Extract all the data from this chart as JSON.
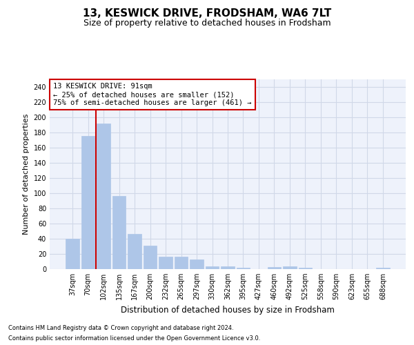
{
  "title": "13, KESWICK DRIVE, FRODSHAM, WA6 7LT",
  "subtitle": "Size of property relative to detached houses in Frodsham",
  "xlabel": "Distribution of detached houses by size in Frodsham",
  "ylabel": "Number of detached properties",
  "categories": [
    "37sqm",
    "70sqm",
    "102sqm",
    "135sqm",
    "167sqm",
    "200sqm",
    "232sqm",
    "265sqm",
    "297sqm",
    "330sqm",
    "362sqm",
    "395sqm",
    "427sqm",
    "460sqm",
    "492sqm",
    "525sqm",
    "558sqm",
    "590sqm",
    "623sqm",
    "655sqm",
    "688sqm"
  ],
  "values": [
    40,
    175,
    192,
    96,
    46,
    31,
    16,
    16,
    13,
    4,
    4,
    2,
    0,
    3,
    4,
    2,
    0,
    0,
    0,
    0,
    2
  ],
  "bar_color": "#aec6e8",
  "bar_edge_color": "#aec6e8",
  "grid_color": "#d0d8e8",
  "background_color": "#eef2fb",
  "vline_color": "#cc0000",
  "annotation_text": "13 KESWICK DRIVE: 91sqm\n← 25% of detached houses are smaller (152)\n75% of semi-detached houses are larger (461) →",
  "annotation_box_color": "#ffffff",
  "annotation_box_edge": "#cc0000",
  "ylim": [
    0,
    250
  ],
  "yticks": [
    0,
    20,
    40,
    60,
    80,
    100,
    120,
    140,
    160,
    180,
    200,
    220,
    240
  ],
  "footer1": "Contains HM Land Registry data © Crown copyright and database right 2024.",
  "footer2": "Contains public sector information licensed under the Open Government Licence v3.0.",
  "title_fontsize": 11,
  "subtitle_fontsize": 9,
  "tick_fontsize": 7,
  "ylabel_fontsize": 8,
  "xlabel_fontsize": 8.5,
  "annotation_fontsize": 7.5,
  "footer_fontsize": 6
}
